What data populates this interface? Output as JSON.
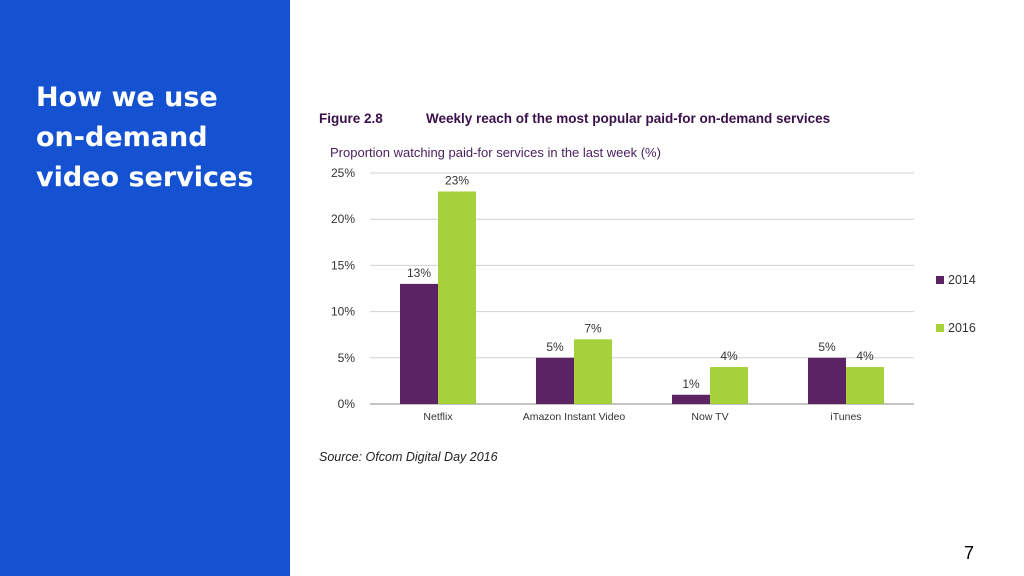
{
  "slide": {
    "title": "How we use on-demand video services",
    "page_number": "7"
  },
  "figure": {
    "label": "Figure 2.8",
    "title": "Weekly reach of the most popular paid-for on-demand services",
    "subtitle": "Proportion watching paid-for services in the last week (%)",
    "source": "Source: Ofcom Digital Day 2016"
  },
  "colors": {
    "panel": "#1452d2",
    "series_2014": "#5c2363",
    "series_2016": "#a6d13a",
    "grid": "#d0d0d0"
  },
  "chart_data": {
    "type": "bar",
    "title": "Weekly reach of the most popular paid-for on-demand services",
    "ylabel": "Proportion watching paid-for services in the last week (%)",
    "xlabel": "",
    "categories": [
      "Netflix",
      "Amazon Instant Video",
      "Now TV",
      "iTunes"
    ],
    "series": [
      {
        "name": "2014",
        "values": [
          13,
          5,
          1,
          5
        ],
        "labels": [
          "13%",
          "5%",
          "1%",
          "5%"
        ]
      },
      {
        "name": "2016",
        "values": [
          23,
          7,
          4,
          4
        ],
        "labels": [
          "23%",
          "7%",
          "4%",
          "4%"
        ]
      }
    ],
    "ylim": [
      0,
      25
    ],
    "yticks": [
      0,
      5,
      10,
      15,
      20,
      25
    ],
    "ytick_labels": [
      "0%",
      "5%",
      "10%",
      "15%",
      "20%",
      "25%"
    ],
    "grid": true,
    "legend": "right"
  }
}
